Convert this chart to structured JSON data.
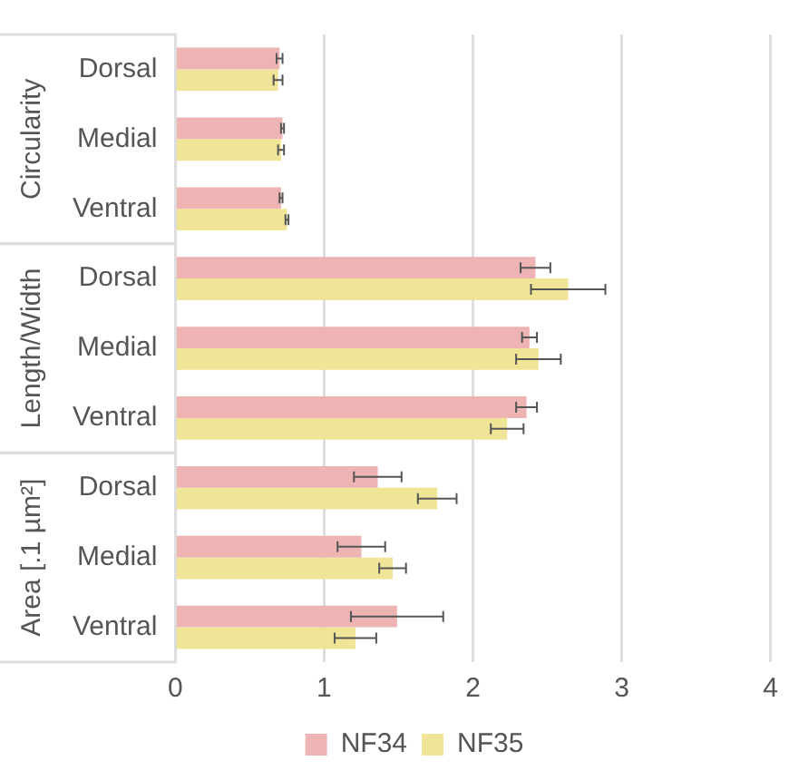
{
  "chart_data": {
    "type": "bar",
    "orientation": "horizontal",
    "categories": [
      "Dorsal",
      "Medial",
      "Ventral",
      "Dorsal",
      "Medial",
      "Ventral",
      "Dorsal",
      "Medial",
      "Ventral"
    ],
    "series": [
      {
        "name": "NF34",
        "color": "#eeb4b4",
        "values": [
          0.7,
          0.72,
          0.71,
          2.42,
          2.38,
          2.36,
          1.36,
          1.25,
          1.49
        ],
        "errors": [
          0.02,
          0.01,
          0.01,
          0.1,
          0.05,
          0.07,
          0.16,
          0.16,
          0.31
        ]
      },
      {
        "name": "NF35",
        "color": "#f0e496",
        "values": [
          0.69,
          0.71,
          0.75,
          2.64,
          2.44,
          2.23,
          1.76,
          1.46,
          1.21
        ],
        "errors": [
          0.03,
          0.02,
          0.01,
          0.25,
          0.15,
          0.11,
          0.13,
          0.09,
          0.14
        ]
      }
    ],
    "annotations": [
      "Circularity",
      "Length/Width",
      "Area [.1 µm²]"
    ],
    "xlim": [
      0,
      4
    ],
    "xticks": [
      0,
      1,
      2,
      3,
      4
    ],
    "grid": "x",
    "legend": "bottom"
  }
}
